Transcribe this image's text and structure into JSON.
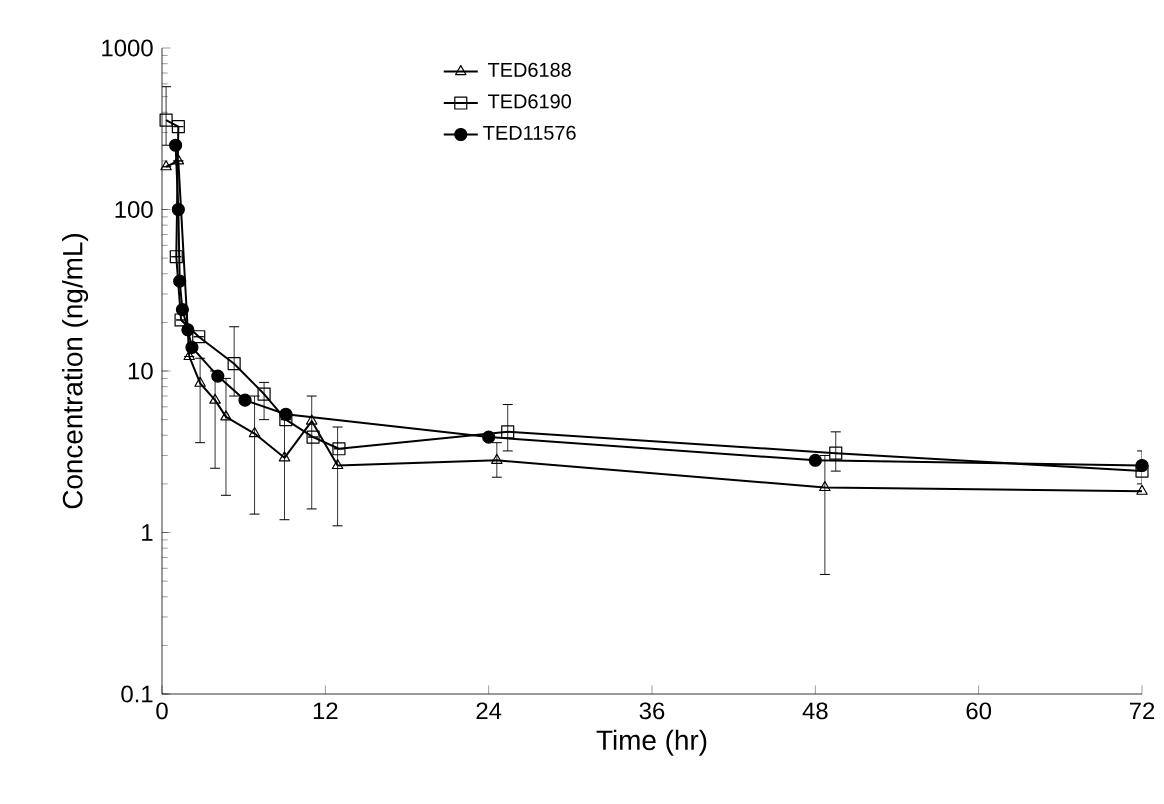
{
  "chart_data": {
    "type": "line",
    "xlabel": "Time (hr)",
    "ylabel": "Concentration (ng/mL)",
    "log": "y",
    "xlim": [
      0,
      72
    ],
    "ylim": [
      0.1,
      1000
    ],
    "xticks": [
      0,
      12,
      24,
      36,
      48,
      60,
      72
    ],
    "yticks": [
      0.1,
      1,
      10,
      100,
      1000
    ],
    "grid": false,
    "legend": "top",
    "line_style": "solid",
    "series": [
      {
        "name": "TED6188",
        "color": "#000000",
        "marker": "triangle",
        "x": [
          0.3,
          1.2,
          2,
          2.8,
          3.9,
          4.7,
          6.8,
          9,
          11,
          12.9,
          24.6,
          48.7,
          72
        ],
        "values": [
          184,
          200,
          12.3,
          8.4,
          6.6,
          5.2,
          4.1,
          2.9,
          4.9,
          2.6,
          2.8,
          1.9,
          1.8
        ],
        "errors": [
          null,
          null,
          null,
          [
            3.6,
            12
          ],
          [
            2.5,
            10
          ],
          [
            1.7,
            9
          ],
          [
            1.3,
            7
          ],
          [
            1.2,
            5.5
          ],
          [
            1.4,
            7
          ],
          [
            1.1,
            4.5
          ],
          [
            2.2,
            3.6
          ],
          [
            0.55,
            3
          ],
          null
        ]
      },
      {
        "name": "TED6190",
        "color": "#000000",
        "marker": "square",
        "x": [
          0.3,
          1.2,
          1.05,
          1.4,
          2.7,
          5.3,
          7.5,
          9.1,
          11.1,
          13,
          25.4,
          49.5,
          72
        ],
        "values": [
          358,
          326,
          51,
          20.7,
          16.3,
          11.1,
          7.2,
          5,
          3.9,
          3.3,
          4.2,
          3.1,
          2.4
        ],
        "errors": [
          [
            250,
            576
          ],
          null,
          null,
          null,
          null,
          [
            7,
            18.8
          ],
          [
            5,
            8.5
          ],
          null,
          null,
          null,
          [
            3.2,
            6.2
          ],
          [
            2.4,
            4.2
          ],
          [
            2,
            3.2
          ]
        ]
      },
      {
        "name": "TED11576",
        "color": "#000000",
        "marker": "circle",
        "x": [
          1,
          1.2,
          1.3,
          1.5,
          1.9,
          2.2,
          4.1,
          6.1,
          9.1,
          24,
          48,
          72
        ],
        "values": [
          250,
          100,
          36,
          24,
          18,
          14,
          9.3,
          6.6,
          5.4,
          3.9,
          2.8,
          2.6
        ]
      }
    ]
  }
}
